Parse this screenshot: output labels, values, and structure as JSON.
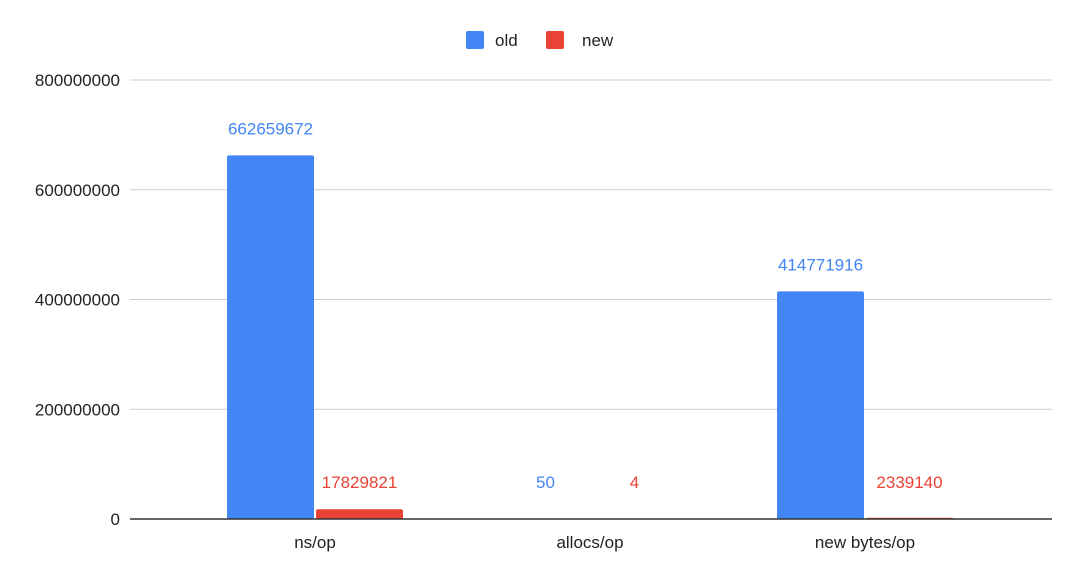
{
  "chart_data": {
    "type": "bar",
    "title": "",
    "xlabel": "",
    "ylabel": "",
    "categories": [
      "ns/op",
      "allocs/op",
      "new bytes/op"
    ],
    "series": [
      {
        "name": "old",
        "color": "#4285f4",
        "values": [
          662659672,
          50,
          414771916
        ],
        "labels": [
          "662659672",
          "50",
          "414771916"
        ]
      },
      {
        "name": "new",
        "color": "#ea4335",
        "values": [
          17829821,
          4,
          2339140
        ],
        "labels": [
          "17829821",
          "4",
          "2339140"
        ]
      }
    ],
    "ylim": [
      0,
      800000000
    ],
    "yticks": [
      0,
      200000000,
      400000000,
      600000000,
      800000000
    ],
    "ytick_labels": [
      "0",
      "200000000",
      "400000000",
      "600000000",
      "800000000"
    ],
    "grid": true,
    "legend_position": "top-center"
  }
}
